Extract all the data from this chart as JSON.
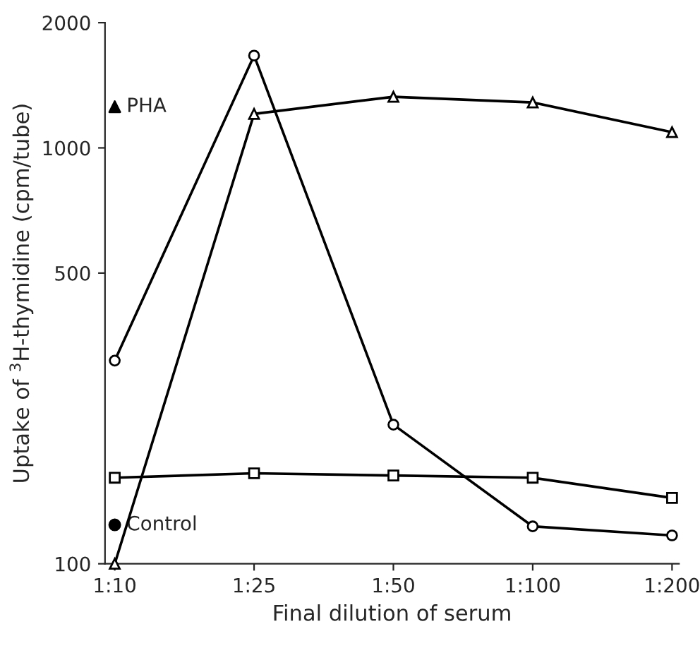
{
  "chart_data": {
    "type": "line",
    "xlabel": "Final dilution of serum",
    "ylabel": "Uptake of $^{3}$H-thymidine (cpm/tube)",
    "categories": [
      "1:10",
      "1:25",
      "1:50",
      "1:100",
      "1:200"
    ],
    "log": "y",
    "ylim": [
      100,
      2000
    ],
    "yticks": [
      100,
      500,
      1000,
      2000
    ],
    "grid": false,
    "legend": false,
    "series": [
      {
        "color": "#000000",
        "marker": "circle",
        "values": [
          308,
          1667,
          216,
          123,
          117
        ]
      },
      {
        "color": "#000000",
        "marker": "triangle",
        "values": [
          100,
          1207,
          1327,
          1286,
          1091
        ]
      },
      {
        "color": "#000000",
        "marker": "square",
        "values": [
          161,
          165,
          163,
          161,
          144
        ]
      },
      {
        "type": "scatter",
        "name": "PHA",
        "color": "#000000",
        "marker": "triangle",
        "values": [
          1256,
          null,
          null,
          null,
          null
        ]
      },
      {
        "type": "scatter",
        "name": "Control",
        "color": "#000000",
        "marker": "circle",
        "values": [
          124,
          null,
          null,
          null,
          null
        ]
      }
    ]
  }
}
